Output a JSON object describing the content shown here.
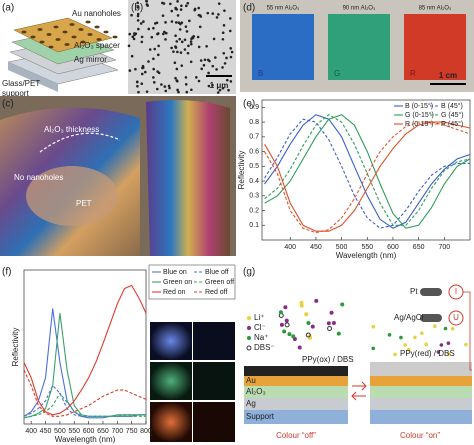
{
  "panels": {
    "a": {
      "label": "(a)",
      "au": "Au nanoholes",
      "spacer": "Al₂O₃ spacer",
      "mirror": "Ag mirror",
      "support": [
        "Glass/PET",
        "support"
      ]
    },
    "b": {
      "label": "(b)",
      "scale": "1 μm"
    },
    "c": {
      "label": "(c)",
      "thickness": "Al₂O₃ thickness",
      "no_nanoholes": "No nanoholes",
      "pet": "PET"
    },
    "d": {
      "label": "(d)",
      "samples": [
        {
          "thickness": "55 nm Al₂O₃",
          "letter": "B"
        },
        {
          "thickness": "90 nm Al₂O₃",
          "letter": "G"
        },
        {
          "thickness": "85 nm Al₂O₃",
          "letter": "R"
        }
      ],
      "scale": "1 cm"
    },
    "g": {
      "label": "(g)",
      "ions": [
        "Li⁺",
        "Cl⁻",
        "Na⁺",
        "DBS⁻"
      ],
      "ppy_ox": "PPy(ox) / DBS",
      "layers": [
        "Au",
        "Al₂O₃",
        "Ag",
        "Support"
      ],
      "off": "Colour “off”",
      "pt": "Pt",
      "agcl": "Ag/AgCl",
      "ppy_red": "PPy(red) / DBS",
      "on": "Colour “on”",
      "i": "I",
      "u": "U"
    }
  },
  "chart_data": [
    {
      "type": "line",
      "panel_label": "(e)",
      "xlabel": "Wavelength (nm)",
      "ylabel": "Reflectivity",
      "x": [
        350,
        375,
        400,
        425,
        450,
        475,
        500,
        525,
        550,
        575,
        600,
        625,
        650,
        675,
        700,
        725,
        750
      ],
      "xlim": [
        345,
        750
      ],
      "xticks": [
        400,
        450,
        500,
        550,
        600,
        650,
        700
      ],
      "ylim": [
        0,
        0.95
      ],
      "yticks": [
        0.1,
        0.2,
        0.3,
        0.4,
        0.5,
        0.6,
        0.7,
        0.8,
        0.9
      ],
      "series": [
        {
          "name": "B (0-15°)",
          "color": "#3a5fcd",
          "style": "solid",
          "values": [
            0.38,
            0.5,
            0.65,
            0.78,
            0.85,
            0.82,
            0.7,
            0.5,
            0.3,
            0.14,
            0.08,
            0.12,
            0.25,
            0.38,
            0.48,
            0.55,
            0.58
          ]
        },
        {
          "name": "B (45°)",
          "color": "#3a5fcd",
          "style": "dashed",
          "values": [
            0.42,
            0.56,
            0.72,
            0.82,
            0.8,
            0.68,
            0.5,
            0.3,
            0.15,
            0.08,
            0.1,
            0.2,
            0.33,
            0.44,
            0.5,
            0.52,
            0.52
          ]
        },
        {
          "name": "G (0-15°)",
          "color": "#2e9e5a",
          "style": "solid",
          "values": [
            0.25,
            0.3,
            0.4,
            0.55,
            0.7,
            0.82,
            0.85,
            0.78,
            0.6,
            0.38,
            0.18,
            0.08,
            0.1,
            0.22,
            0.38,
            0.5,
            0.55
          ]
        },
        {
          "name": "G (45°)",
          "color": "#2e9e5a",
          "style": "dashed",
          "values": [
            0.28,
            0.35,
            0.48,
            0.64,
            0.78,
            0.85,
            0.8,
            0.65,
            0.45,
            0.25,
            0.1,
            0.1,
            0.2,
            0.35,
            0.47,
            0.53,
            0.55
          ]
        },
        {
          "name": "R (0-15°)",
          "color": "#e0502a",
          "style": "solid",
          "values": [
            0.65,
            0.5,
            0.25,
            0.1,
            0.06,
            0.06,
            0.1,
            0.2,
            0.35,
            0.5,
            0.62,
            0.72,
            0.78,
            0.8,
            0.8,
            0.78,
            0.76
          ]
        },
        {
          "name": "R (45°)",
          "color": "#e0502a",
          "style": "dashed",
          "values": [
            0.6,
            0.45,
            0.2,
            0.08,
            0.05,
            0.07,
            0.15,
            0.28,
            0.45,
            0.6,
            0.7,
            0.77,
            0.8,
            0.8,
            0.78,
            0.75,
            0.72
          ]
        }
      ]
    },
    {
      "type": "line",
      "panel_label": "(f)",
      "xlabel": "Wavelength (nm)",
      "ylabel": "Reflectivity",
      "x": [
        375,
        400,
        425,
        450,
        475,
        500,
        525,
        550,
        575,
        600,
        625,
        650,
        675,
        700,
        725,
        750,
        775,
        800
      ],
      "xlim": [
        375,
        800
      ],
      "xticks": [
        400,
        450,
        500,
        550,
        600,
        650,
        700,
        750,
        800
      ],
      "ylim": [
        0,
        1
      ],
      "series": [
        {
          "name": "Blue on",
          "color": "#4a6fd8",
          "style": "solid",
          "values": [
            0.05,
            0.08,
            0.15,
            0.3,
            0.75,
            0.4,
            0.15,
            0.08,
            0.05,
            0.04,
            0.04,
            0.04,
            0.05,
            0.05,
            0.05,
            0.05,
            0.06,
            0.06
          ]
        },
        {
          "name": "Blue off",
          "color": "#4a6fd8",
          "style": "dashed",
          "values": [
            0.05,
            0.07,
            0.1,
            0.15,
            0.25,
            0.2,
            0.1,
            0.06,
            0.05,
            0.05,
            0.05,
            0.05,
            0.05,
            0.05,
            0.06,
            0.06,
            0.06,
            0.06
          ]
        },
        {
          "name": "Green on",
          "color": "#3aa36a",
          "style": "solid",
          "values": [
            0.04,
            0.05,
            0.07,
            0.1,
            0.25,
            0.72,
            0.35,
            0.12,
            0.06,
            0.05,
            0.05,
            0.05,
            0.05,
            0.06,
            0.06,
            0.06,
            0.06,
            0.06
          ]
        },
        {
          "name": "Green off",
          "color": "#3aa36a",
          "style": "dashed",
          "values": [
            0.04,
            0.05,
            0.06,
            0.08,
            0.12,
            0.2,
            0.14,
            0.08,
            0.06,
            0.05,
            0.05,
            0.05,
            0.05,
            0.05,
            0.05,
            0.05,
            0.05,
            0.05
          ]
        },
        {
          "name": "Red on",
          "color": "#e03a2a",
          "style": "solid",
          "values": [
            0.4,
            0.3,
            0.15,
            0.08,
            0.06,
            0.07,
            0.1,
            0.15,
            0.22,
            0.3,
            0.4,
            0.52,
            0.65,
            0.78,
            0.88,
            0.9,
            0.82,
            0.72
          ]
        },
        {
          "name": "Red off",
          "color": "#e03a2a",
          "style": "dashed",
          "values": [
            0.35,
            0.25,
            0.12,
            0.07,
            0.05,
            0.05,
            0.06,
            0.08,
            0.1,
            0.12,
            0.15,
            0.18,
            0.2,
            0.22,
            0.22,
            0.2,
            0.18,
            0.16
          ]
        }
      ]
    }
  ]
}
